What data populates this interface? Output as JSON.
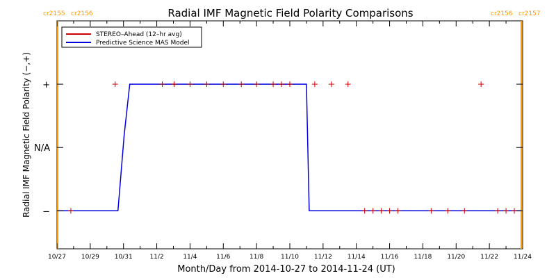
{
  "chart_data": {
    "type": "line",
    "title": "Radial IMF Magnetic Field Polarity Comparisons",
    "xlabel": "Month/Day from 2014-10-27 to 2014-11-24 (UT)",
    "ylabel": "Radial IMF Magnetic Field Polarity (−,+)",
    "x_range": [
      "2014-10-27",
      "2014-11-24"
    ],
    "x_ticks": [
      "10/27",
      "10/29",
      "10/31",
      "11/2",
      "11/4",
      "11/6",
      "11/8",
      "11/10",
      "11/12",
      "11/14",
      "11/16",
      "11/18",
      "11/20",
      "11/22",
      "11/24"
    ],
    "y_ticks": [
      {
        "label": "+",
        "value": 1
      },
      {
        "label": "N/A",
        "value": 0
      },
      {
        "label": "−",
        "value": -1
      }
    ],
    "ylim": [
      -1.6,
      2.0
    ],
    "grid": false,
    "legend_position": "top-left",
    "colors": {
      "stereo": "#cc0000",
      "model": "#0000dd",
      "carrington": "#ff9900",
      "axis": "#000000"
    },
    "series": [
      {
        "name": "STEREO–Ahead (12–hr avg)",
        "marker": "plus",
        "x": [
          "2014-10-27 20:00",
          "2014-10-30 12:00",
          "2014-11-02 08:00",
          "2014-11-03 01:00",
          "2014-11-04 00:00",
          "2014-11-05 00:00",
          "2014-11-06 00:00",
          "2014-11-07 02:00",
          "2014-11-08 00:00",
          "2014-11-09 00:00",
          "2014-11-09 12:00",
          "2014-11-10 00:00",
          "2014-11-11 12:00",
          "2014-11-12 12:00",
          "2014-11-13 12:00",
          "2014-11-14 12:00",
          "2014-11-15 00:00",
          "2014-11-15 12:00",
          "2014-11-16 00:00",
          "2014-11-16 12:00",
          "2014-11-18 12:00",
          "2014-11-19 12:00",
          "2014-11-20 12:00",
          "2014-11-21 12:00",
          "2014-11-22 12:00",
          "2014-11-23 00:00",
          "2014-11-23 12:00"
        ],
        "y": [
          -1,
          1,
          1,
          1,
          1,
          1,
          1,
          1,
          1,
          1,
          1,
          1,
          1,
          1,
          1,
          -1,
          -1,
          -1,
          -1,
          -1,
          -1,
          -1,
          -1,
          1,
          -1,
          -1,
          -1
        ]
      },
      {
        "name": "Predictive Science MAS Model",
        "step": true,
        "x": [
          "2014-10-27 01:00",
          "2014-10-30 16:00",
          "2014-10-31 01:00",
          "2014-10-31 09:00",
          "2014-11-11 00:00",
          "2014-11-11 04:00",
          "2014-11-23 22:00"
        ],
        "y": [
          -1,
          -1,
          0.2,
          1,
          1,
          -1,
          -1
        ]
      }
    ],
    "annotations": [
      {
        "text": "cr2155",
        "date": "2014-10-27 01:00",
        "position": "top-left"
      },
      {
        "text": "cr2156",
        "date": "2014-10-27 01:00",
        "position": "top-left"
      },
      {
        "text": "cr2156",
        "date": "2014-11-23 22:00",
        "position": "top-right"
      },
      {
        "text": "cr2157",
        "date": "2014-11-23 22:00",
        "position": "top-right"
      }
    ],
    "carrington_boundaries": [
      "2014-10-27 01:00",
      "2014-11-23 22:00"
    ]
  }
}
